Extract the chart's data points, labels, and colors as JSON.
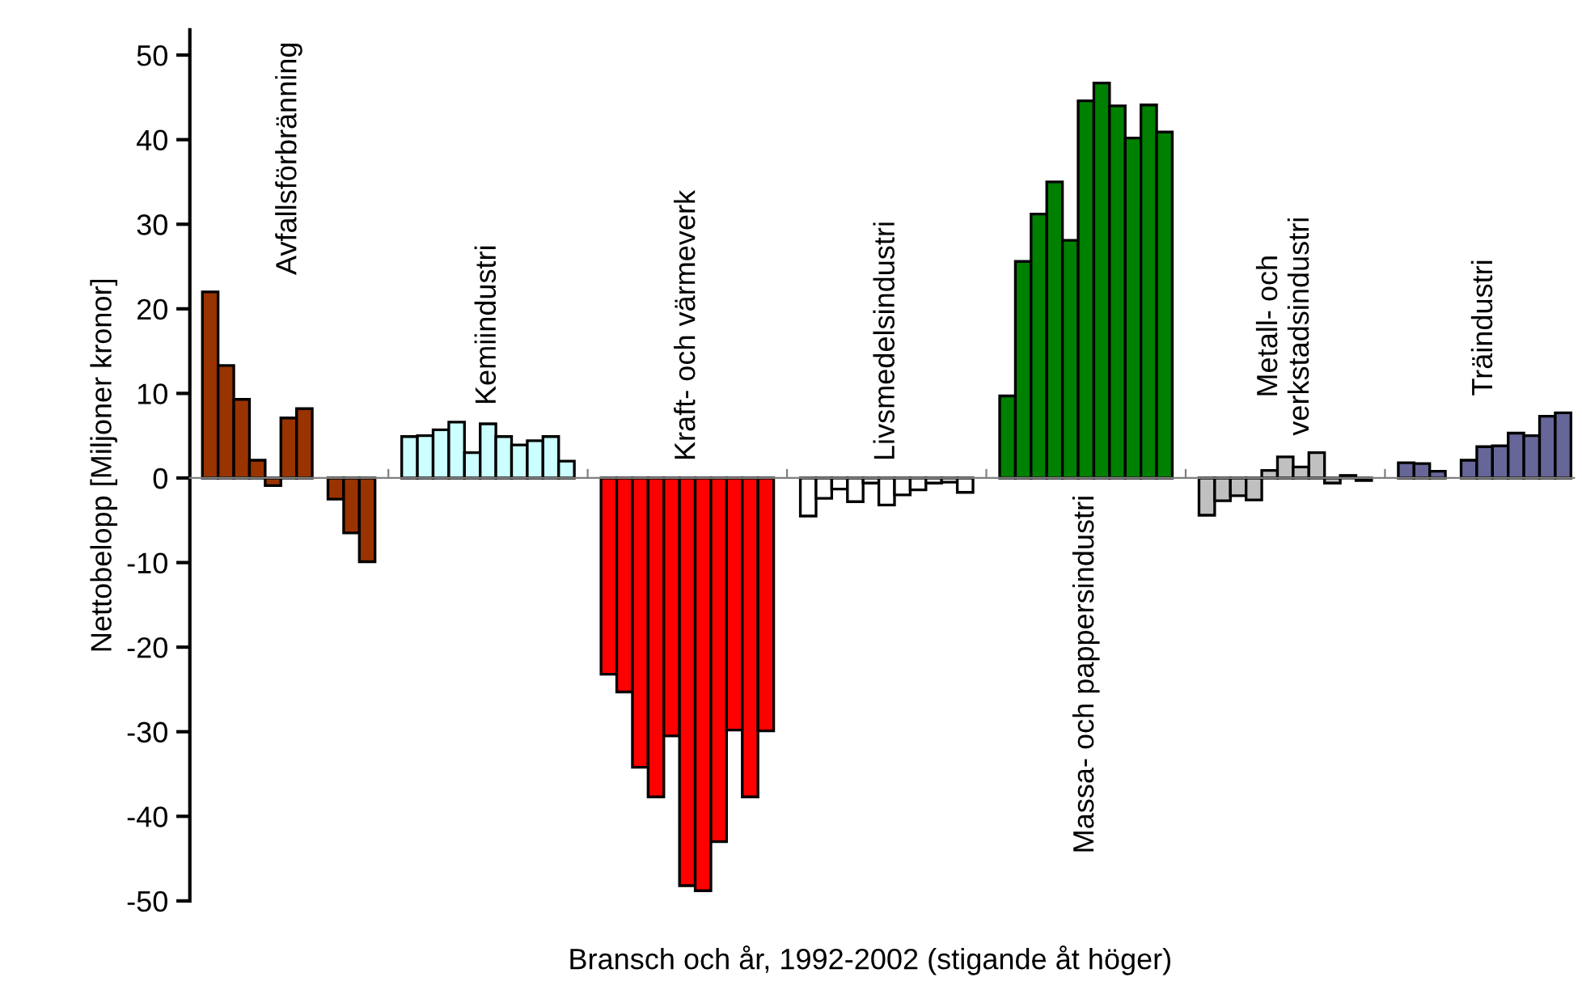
{
  "chart_data": {
    "type": "bar",
    "xlabel": "Bransch och år, 1992-2002 (stigande åt höger)",
    "ylabel": "Nettobelopp [Miljoner kronor]",
    "categories": [
      "Avfallsförbränning",
      "Kemiindustri",
      "Kraft- och värmeverk",
      "Livsmedelsindustri",
      "Massa- och pappersindustri",
      "Metall- och\nverkstadsindustri",
      "Träindustri"
    ],
    "series": [
      {
        "colors": [
          "#993300",
          "#ccffff",
          "#ff0000",
          "#ffffff",
          "#008000",
          "#c0c0c0",
          "#666699"
        ],
        "values": [
          22,
          4.9,
          -23.2,
          -4.5,
          9.7,
          -4.4,
          1.8
        ]
      },
      {
        "colors": [
          "#993300",
          "#ccffff",
          "#ff0000",
          "#ffffff",
          "#008000",
          "#c0c0c0",
          "#666699"
        ],
        "values": [
          13.3,
          5.0,
          -25.3,
          -2.4,
          25.6,
          -2.7,
          1.7
        ]
      },
      {
        "colors": [
          "#993300",
          "#ccffff",
          "#ff0000",
          "#ffffff",
          "#008000",
          "#c0c0c0",
          "#666699"
        ],
        "values": [
          9.3,
          5.7,
          -34.2,
          -1.3,
          31.2,
          -2.1,
          0.8
        ]
      },
      {
        "colors": [
          "#993300",
          "#ccffff",
          "#ff0000",
          "#ffffff",
          "#008000",
          "#c0c0c0",
          "#666699"
        ],
        "values": [
          2.1,
          6.6,
          -37.7,
          -2.8,
          35.0,
          -2.6,
          null
        ]
      },
      {
        "colors": [
          "#993300",
          "#ccffff",
          "#ff0000",
          "#ffffff",
          "#008000",
          "#c0c0c0",
          "#666699"
        ],
        "values": [
          -0.9,
          3.0,
          -30.5,
          -0.6,
          28.1,
          0.9,
          2.1
        ]
      },
      {
        "colors": [
          "#993300",
          "#ccffff",
          "#ff0000",
          "#ffffff",
          "#008000",
          "#c0c0c0",
          "#666699"
        ],
        "values": [
          7.1,
          6.4,
          -48.2,
          -3.2,
          44.6,
          2.5,
          3.7
        ]
      },
      {
        "colors": [
          "#993300",
          "#ccffff",
          "#ff0000",
          "#ffffff",
          "#008000",
          "#c0c0c0",
          "#666699"
        ],
        "values": [
          8.2,
          4.9,
          -48.8,
          -2.0,
          46.7,
          1.3,
          3.8
        ]
      },
      {
        "colors": [
          "#993300",
          "#ccffff",
          "#ff0000",
          "#ffffff",
          "#008000",
          "#c0c0c0",
          "#666699"
        ],
        "values": [
          null,
          3.9,
          -43.0,
          -1.4,
          44.0,
          3.0,
          5.3
        ]
      },
      {
        "colors": [
          "#993300",
          "#ccffff",
          "#ff0000",
          "#ffffff",
          "#008000",
          "#c0c0c0",
          "#666699"
        ],
        "values": [
          -2.5,
          4.4,
          -29.8,
          -0.6,
          40.2,
          -0.6,
          5.0
        ]
      },
      {
        "colors": [
          "#993300",
          "#ccffff",
          "#ff0000",
          "#ffffff",
          "#008000",
          "#c0c0c0",
          "#666699"
        ],
        "values": [
          -6.5,
          4.9,
          -37.7,
          -0.5,
          44.1,
          0.3,
          7.3
        ]
      },
      {
        "colors": [
          "#993300",
          "#ccffff",
          "#ff0000",
          "#ffffff",
          "#008000",
          "#c0c0c0",
          "#666699"
        ],
        "values": [
          -9.9,
          2.0,
          -29.9,
          -1.7,
          40.9,
          -0.3,
          7.7
        ]
      }
    ],
    "ylim": [
      -50,
      53
    ],
    "yticks": [
      -50,
      -40,
      -30,
      -20,
      -10,
      0,
      10,
      20,
      30,
      40,
      50
    ],
    "tick_labels": "y",
    "grid": false
  }
}
